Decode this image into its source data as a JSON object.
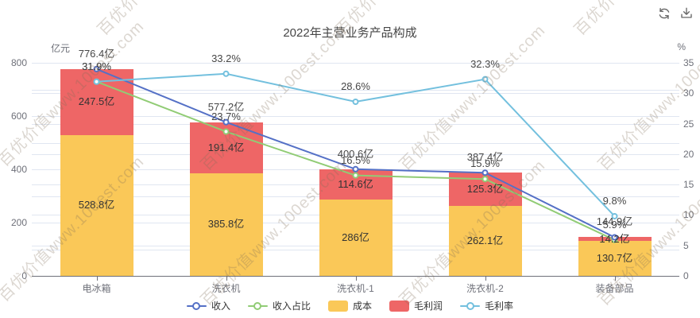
{
  "title": "2022年主营业务产品构成",
  "watermark": {
    "text": "百优价值www.100est.com",
    "color": "rgba(130,110,88,0.28)"
  },
  "toolbox": {
    "icons": [
      "refresh",
      "download"
    ],
    "color": "#666666"
  },
  "colors": {
    "revenue": "#5470c6",
    "revenue_share": "#91cc75",
    "cost": "#fac858",
    "gross_profit": "#ee6666",
    "gross_margin": "#73c0de",
    "gridline": "#E0E6F1",
    "axis": "#6E7079",
    "label": "#464646"
  },
  "chart_data": {
    "type": "bar+line",
    "title": "2022年主营业务产品构成",
    "categories": [
      "电冰箱",
      "洗衣机",
      "洗衣机-1",
      "洗衣机-2",
      "装备部品"
    ],
    "left_axis": {
      "name": "亿元",
      "min": 0,
      "max": 800,
      "tick_step": 200,
      "grid_step": 100,
      "tick_labels": [
        "0",
        "200",
        "400",
        "600",
        "800"
      ]
    },
    "right_axis": {
      "name": "%",
      "min": 0,
      "max": 35,
      "tick_step": 5,
      "grid_step": 5,
      "tick_labels": [
        "0",
        "5",
        "10",
        "15",
        "20",
        "25",
        "30",
        "35"
      ]
    },
    "bar_series": [
      {
        "key": "cost",
        "name": "成本",
        "color": "#fac858",
        "stack_order": 0,
        "values": [
          528.8,
          385.8,
          286,
          262.1,
          130.7
        ],
        "labels": [
          "528.8亿",
          "385.8亿",
          "286亿",
          "262.1亿",
          "130.7亿"
        ]
      },
      {
        "key": "gross-profit",
        "name": "毛利润",
        "color": "#ee6666",
        "stack_order": 1,
        "values": [
          247.5,
          191.4,
          114.6,
          125.3,
          14.2
        ],
        "labels": [
          "247.5亿",
          "191.4亿",
          "114.6亿",
          "125.3亿",
          "14.2亿"
        ]
      }
    ],
    "line_series": [
      {
        "key": "revenue-share",
        "name": "收入占比",
        "color": "#91cc75",
        "axis": "right",
        "values": [
          31.9,
          23.7,
          16.5,
          15.9,
          5.9
        ],
        "labels": [
          "31.9%",
          "23.7%",
          "16.5%",
          "15.9%",
          "5.9%"
        ]
      },
      {
        "key": "revenue",
        "name": "收入",
        "color": "#5470c6",
        "axis": "left",
        "values": [
          776.4,
          577.2,
          400.6,
          387.4,
          144.9
        ],
        "labels": [
          "776.4亿",
          "577.2亿",
          "400.6亿",
          "387.4亿",
          "144.9亿"
        ]
      },
      {
        "key": "gross-margin",
        "name": "毛利率",
        "color": "#73c0de",
        "axis": "right",
        "values": [
          31.9,
          33.2,
          28.6,
          32.3,
          9.8
        ],
        "labels": [
          "31.9%",
          "33.2%",
          "28.6%",
          "32.3%",
          "9.8%"
        ]
      }
    ],
    "legend": [
      {
        "key": "revenue",
        "label": "收入",
        "symbol": "line",
        "color": "#5470c6"
      },
      {
        "key": "revenue-share",
        "label": "收入占比",
        "symbol": "line",
        "color": "#91cc75"
      },
      {
        "key": "cost",
        "label": "成本",
        "symbol": "rect",
        "color": "#fac858"
      },
      {
        "key": "gross-profit",
        "label": "毛利润",
        "symbol": "rect",
        "color": "#ee6666"
      },
      {
        "key": "gross-margin",
        "label": "毛利率",
        "symbol": "line",
        "color": "#73c0de"
      }
    ],
    "legend_position": "bottom",
    "grid": true
  }
}
